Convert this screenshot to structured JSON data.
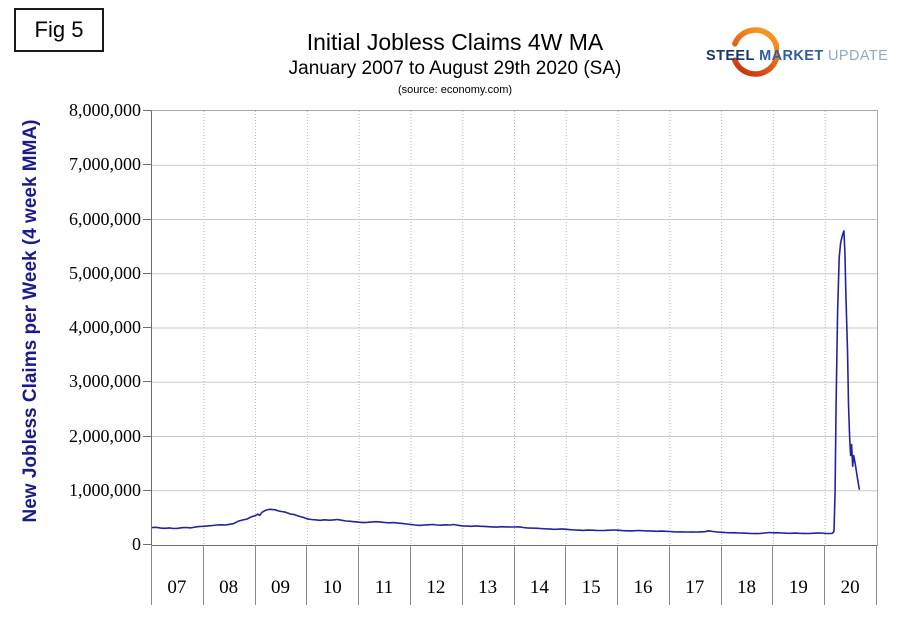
{
  "fig_label": "Fig 5",
  "header": {
    "title": "Initial Jobless Claims 4W MA",
    "subtitle": "January 2007 to August 29th 2020 (SA)",
    "source": "(source: economy.com)"
  },
  "logo": {
    "steel": "STEEL",
    "market": "MARKET",
    "update": "UPDATE",
    "crescent_gradient": [
      "#c92a10",
      "#f7941e"
    ]
  },
  "colors": {
    "line": "#2323a0",
    "y_axis_title": "#1a1a8e",
    "h_grid": "#c9c9c9",
    "v_grid": "#b8b8b8"
  },
  "chart_data": {
    "type": "line",
    "title": "Initial Jobless Claims 4W MA",
    "subtitle": "January 2007 to August 29th 2020 (SA)",
    "source": "(source: economy.com)",
    "ylabel": "New Jobless Claims per Week (4 week MMA)",
    "xlabel": "",
    "ylim": [
      0,
      8000000
    ],
    "y_tick_step": 1000000,
    "y_tick_labels": [
      "0",
      "1,000,000",
      "2,000,000",
      "3,000,000",
      "4,000,000",
      "5,000,000",
      "6,000,000",
      "7,000,000",
      "8,000,000"
    ],
    "x_categories": [
      "07",
      "08",
      "09",
      "10",
      "11",
      "12",
      "13",
      "14",
      "15",
      "16",
      "17",
      "18",
      "19",
      "20"
    ],
    "x_range": [
      2007,
      2021
    ],
    "grid": {
      "horizontal": "solid",
      "vertical": "dotted"
    },
    "legend": "none",
    "series": [
      {
        "name": "Initial jobless claims, 4-week moving average (SA)",
        "color": "#2323a0",
        "points": [
          [
            2007.0,
            320000
          ],
          [
            2007.08,
            327000
          ],
          [
            2007.17,
            312000
          ],
          [
            2007.25,
            308000
          ],
          [
            2007.33,
            316000
          ],
          [
            2007.42,
            305000
          ],
          [
            2007.5,
            308000
          ],
          [
            2007.58,
            318000
          ],
          [
            2007.67,
            322000
          ],
          [
            2007.75,
            316000
          ],
          [
            2007.83,
            330000
          ],
          [
            2007.92,
            342000
          ],
          [
            2008.0,
            344000
          ],
          [
            2008.08,
            352000
          ],
          [
            2008.17,
            360000
          ],
          [
            2008.25,
            368000
          ],
          [
            2008.33,
            372000
          ],
          [
            2008.42,
            368000
          ],
          [
            2008.5,
            382000
          ],
          [
            2008.58,
            394000
          ],
          [
            2008.67,
            440000
          ],
          [
            2008.75,
            460000
          ],
          [
            2008.83,
            478000
          ],
          [
            2008.92,
            520000
          ],
          [
            2009.0,
            543000
          ],
          [
            2009.04,
            570000
          ],
          [
            2009.08,
            545000
          ],
          [
            2009.12,
            600000
          ],
          [
            2009.17,
            628000
          ],
          [
            2009.21,
            645000
          ],
          [
            2009.25,
            655000
          ],
          [
            2009.29,
            658000
          ],
          [
            2009.33,
            652000
          ],
          [
            2009.38,
            648000
          ],
          [
            2009.42,
            635000
          ],
          [
            2009.46,
            625000
          ],
          [
            2009.5,
            618000
          ],
          [
            2009.58,
            605000
          ],
          [
            2009.67,
            572000
          ],
          [
            2009.75,
            560000
          ],
          [
            2009.83,
            532000
          ],
          [
            2009.92,
            508000
          ],
          [
            2010.0,
            482000
          ],
          [
            2010.08,
            470000
          ],
          [
            2010.17,
            462000
          ],
          [
            2010.25,
            456000
          ],
          [
            2010.33,
            465000
          ],
          [
            2010.42,
            458000
          ],
          [
            2010.5,
            462000
          ],
          [
            2010.58,
            470000
          ],
          [
            2010.67,
            455000
          ],
          [
            2010.75,
            442000
          ],
          [
            2010.83,
            436000
          ],
          [
            2010.92,
            428000
          ],
          [
            2011.0,
            420000
          ],
          [
            2011.08,
            412000
          ],
          [
            2011.17,
            418000
          ],
          [
            2011.25,
            426000
          ],
          [
            2011.33,
            430000
          ],
          [
            2011.42,
            422000
          ],
          [
            2011.5,
            415000
          ],
          [
            2011.58,
            410000
          ],
          [
            2011.67,
            412000
          ],
          [
            2011.75,
            404000
          ],
          [
            2011.83,
            398000
          ],
          [
            2011.92,
            388000
          ],
          [
            2012.0,
            378000
          ],
          [
            2012.08,
            368000
          ],
          [
            2012.17,
            362000
          ],
          [
            2012.25,
            368000
          ],
          [
            2012.33,
            372000
          ],
          [
            2012.42,
            378000
          ],
          [
            2012.5,
            368000
          ],
          [
            2012.58,
            365000
          ],
          [
            2012.67,
            372000
          ],
          [
            2012.75,
            368000
          ],
          [
            2012.83,
            378000
          ],
          [
            2012.92,
            362000
          ],
          [
            2013.0,
            352000
          ],
          [
            2013.08,
            348000
          ],
          [
            2013.17,
            345000
          ],
          [
            2013.25,
            352000
          ],
          [
            2013.33,
            346000
          ],
          [
            2013.42,
            342000
          ],
          [
            2013.5,
            338000
          ],
          [
            2013.58,
            334000
          ],
          [
            2013.67,
            330000
          ],
          [
            2013.75,
            338000
          ],
          [
            2013.83,
            334000
          ],
          [
            2013.92,
            332000
          ],
          [
            2014.0,
            332000
          ],
          [
            2014.08,
            336000
          ],
          [
            2014.17,
            322000
          ],
          [
            2014.25,
            316000
          ],
          [
            2014.33,
            312000
          ],
          [
            2014.42,
            310000
          ],
          [
            2014.5,
            304000
          ],
          [
            2014.58,
            298000
          ],
          [
            2014.67,
            296000
          ],
          [
            2014.75,
            290000
          ],
          [
            2014.83,
            292000
          ],
          [
            2014.92,
            296000
          ],
          [
            2015.0,
            290000
          ],
          [
            2015.08,
            282000
          ],
          [
            2015.17,
            276000
          ],
          [
            2015.25,
            272000
          ],
          [
            2015.33,
            270000
          ],
          [
            2015.42,
            274000
          ],
          [
            2015.5,
            272000
          ],
          [
            2015.58,
            270000
          ],
          [
            2015.67,
            268000
          ],
          [
            2015.75,
            270000
          ],
          [
            2015.83,
            272000
          ],
          [
            2015.92,
            276000
          ],
          [
            2016.0,
            272000
          ],
          [
            2016.08,
            266000
          ],
          [
            2016.17,
            262000
          ],
          [
            2016.25,
            260000
          ],
          [
            2016.33,
            264000
          ],
          [
            2016.42,
            268000
          ],
          [
            2016.5,
            262000
          ],
          [
            2016.58,
            260000
          ],
          [
            2016.67,
            256000
          ],
          [
            2016.75,
            252000
          ],
          [
            2016.83,
            256000
          ],
          [
            2016.92,
            252000
          ],
          [
            2017.0,
            248000
          ],
          [
            2017.08,
            244000
          ],
          [
            2017.17,
            242000
          ],
          [
            2017.25,
            242000
          ],
          [
            2017.33,
            240000
          ],
          [
            2017.42,
            238000
          ],
          [
            2017.5,
            240000
          ],
          [
            2017.58,
            242000
          ],
          [
            2017.67,
            246000
          ],
          [
            2017.75,
            262000
          ],
          [
            2017.83,
            248000
          ],
          [
            2017.92,
            240000
          ],
          [
            2018.0,
            234000
          ],
          [
            2018.08,
            228000
          ],
          [
            2018.17,
            224000
          ],
          [
            2018.25,
            226000
          ],
          [
            2018.33,
            222000
          ],
          [
            2018.42,
            220000
          ],
          [
            2018.5,
            216000
          ],
          [
            2018.58,
            212000
          ],
          [
            2018.67,
            210000
          ],
          [
            2018.75,
            214000
          ],
          [
            2018.83,
            222000
          ],
          [
            2018.92,
            230000
          ],
          [
            2019.0,
            224000
          ],
          [
            2019.08,
            226000
          ],
          [
            2019.17,
            222000
          ],
          [
            2019.25,
            218000
          ],
          [
            2019.33,
            216000
          ],
          [
            2019.42,
            220000
          ],
          [
            2019.5,
            216000
          ],
          [
            2019.58,
            214000
          ],
          [
            2019.67,
            212000
          ],
          [
            2019.75,
            216000
          ],
          [
            2019.83,
            220000
          ],
          [
            2019.92,
            222000
          ],
          [
            2020.0,
            214000
          ],
          [
            2020.05,
            212000
          ],
          [
            2020.1,
            212000
          ],
          [
            2020.14,
            216000
          ],
          [
            2020.17,
            250000
          ],
          [
            2020.19,
            1000000
          ],
          [
            2020.21,
            2600000
          ],
          [
            2020.24,
            4300000
          ],
          [
            2020.27,
            5300000
          ],
          [
            2020.3,
            5580000
          ],
          [
            2020.33,
            5700000
          ],
          [
            2020.36,
            5790000
          ],
          [
            2020.38,
            5400000
          ],
          [
            2020.4,
            4600000
          ],
          [
            2020.43,
            3600000
          ],
          [
            2020.45,
            2600000
          ],
          [
            2020.47,
            2000000
          ],
          [
            2020.49,
            1650000
          ],
          [
            2020.51,
            1850000
          ],
          [
            2020.53,
            1450000
          ],
          [
            2020.55,
            1650000
          ],
          [
            2020.58,
            1500000
          ],
          [
            2020.62,
            1250000
          ],
          [
            2020.66,
            1020000
          ]
        ]
      }
    ]
  }
}
